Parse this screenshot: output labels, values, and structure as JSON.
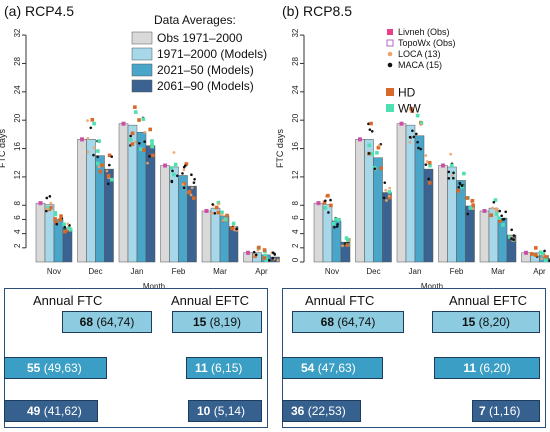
{
  "colors": {
    "obs": "#d9d9d9",
    "models_1971": "#a6d8ea",
    "models_2021": "#4aa6c9",
    "models_2061": "#3b6391",
    "livneh": "#e83e8c",
    "topowx": "#b565c9",
    "loca": "#f0a46a",
    "maca": "#111111",
    "hd": "#d9692a",
    "ww": "#4ee0b2",
    "table_row1": "#8ccbe0",
    "table_row2": "#3b9ec4",
    "table_row3": "#36608d"
  },
  "chart_data": [
    {
      "type": "bar",
      "title": "(a) RCP4.5",
      "xlabel": "Month",
      "ylabel": "FTC days",
      "ylim": [
        0,
        33
      ],
      "yticks": [
        2,
        4,
        6,
        8,
        12,
        16,
        20,
        24,
        28,
        32
      ],
      "categories": [
        "Nov",
        "Dec",
        "Jan",
        "Feb",
        "Mar",
        "Apr"
      ],
      "legend_title": "Data Averages:",
      "series": [
        {
          "name": "Obs 1971–2000",
          "values": [
            8.3,
            17.3,
            19.5,
            13.6,
            7.2,
            1.3
          ]
        },
        {
          "name": "1971–2000 (Models)",
          "values": [
            8.1,
            17.3,
            19.3,
            13.4,
            7.6,
            1.3
          ]
        },
        {
          "name": "2021–50 (Models)",
          "values": [
            6.0,
            15.0,
            18.3,
            12.2,
            6.5,
            1.0
          ]
        },
        {
          "name": "2061–90 (Models)",
          "values": [
            4.8,
            13.1,
            16.4,
            10.7,
            5.0,
            0.7
          ]
        }
      ]
    },
    {
      "type": "bar",
      "title": "(b) RCP8.5",
      "xlabel": "Month",
      "ylabel": "FTC days",
      "ylim": [
        0,
        33
      ],
      "yticks": [
        0,
        2,
        4,
        6,
        8,
        12,
        16,
        20,
        24,
        28,
        32
      ],
      "categories": [
        "Nov",
        "Dec",
        "Jan",
        "Feb",
        "Mar",
        "Apr"
      ],
      "legend_entries": [
        "Livneh (Obs)",
        "TopoWx (Obs)",
        "LOCA (13)",
        "MACA (15)",
        "HD",
        "WW"
      ],
      "series": [
        {
          "name": "Obs 1971–2000",
          "values": [
            8.3,
            17.3,
            19.5,
            13.6,
            7.2,
            1.3
          ]
        },
        {
          "name": "1971–2000 (Models)",
          "values": [
            8.1,
            17.3,
            19.3,
            13.4,
            7.6,
            1.3
          ]
        },
        {
          "name": "2021–50 (Models)",
          "values": [
            5.8,
            14.7,
            17.8,
            11.5,
            6.2,
            0.9
          ]
        },
        {
          "name": "2061–90 (Models)",
          "values": [
            2.8,
            9.8,
            13.1,
            7.9,
            3.8,
            0.5
          ]
        }
      ]
    }
  ],
  "tables": [
    {
      "ftc_label": "Annual FTC",
      "eftc_label": "Annual EFTC",
      "rows": [
        {
          "ftc_value": "68",
          "ftc_range": " (64,74)",
          "eftc_value": "15",
          "eftc_range": " (8,19)"
        },
        {
          "ftc_value": "55",
          "ftc_range": " (49,63)",
          "eftc_value": "11",
          "eftc_range": " (6,15)"
        },
        {
          "ftc_value": "49",
          "ftc_range": " (41,62)",
          "eftc_value": "10",
          "eftc_range": " (5,14)"
        }
      ]
    },
    {
      "ftc_label": "Annual FTC",
      "eftc_label": "Annual EFTC",
      "rows": [
        {
          "ftc_value": "68",
          "ftc_range": " (64,74)",
          "eftc_value": "15",
          "eftc_range": " (8,20)"
        },
        {
          "ftc_value": "54",
          "ftc_range": " (47,63)",
          "eftc_value": "11",
          "eftc_range": " (6,20)"
        },
        {
          "ftc_value": "36",
          "ftc_range": " (22,53)",
          "eftc_value": "7",
          "eftc_range": " (1,16)"
        }
      ]
    }
  ]
}
